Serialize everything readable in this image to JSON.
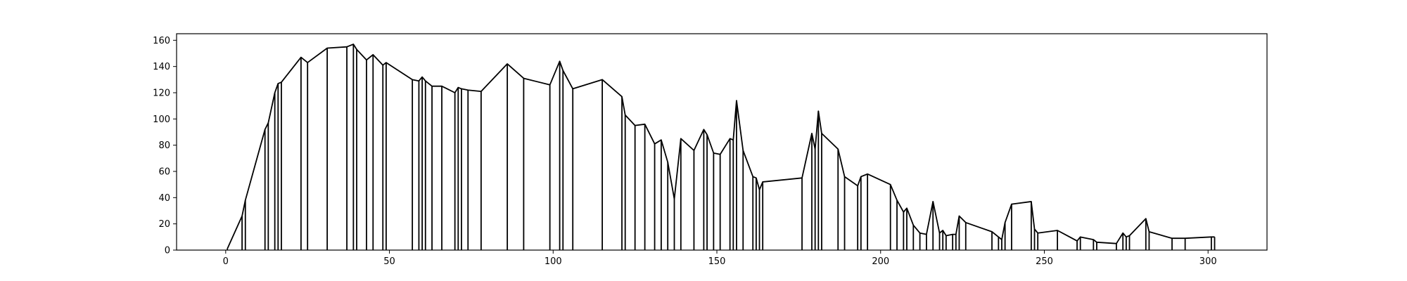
{
  "chart_data": {
    "type": "line",
    "title": "",
    "xlabel": "",
    "ylabel": "",
    "xlim": [
      -15,
      318
    ],
    "ylim": [
      0,
      165
    ],
    "grid": false,
    "legend": "none",
    "x_ticks": [
      0,
      50,
      100,
      150,
      200,
      250,
      300
    ],
    "y_ticks": [
      0,
      20,
      40,
      60,
      80,
      100,
      120,
      140,
      160
    ],
    "x_tick_labels": [
      "0",
      "50",
      "100",
      "150",
      "200",
      "250",
      "300"
    ],
    "y_tick_labels": [
      "0",
      "20",
      "40",
      "60",
      "80",
      "100",
      "120",
      "140",
      "160"
    ],
    "line_color": "#000000",
    "drop_lines": true,
    "series": [
      {
        "x": [
          0.5,
          5,
          6,
          12,
          13,
          15,
          16,
          17,
          23,
          25,
          31,
          37,
          39,
          40,
          43,
          45,
          48,
          49,
          57,
          59,
          60,
          61,
          63,
          66,
          70,
          71,
          72,
          74,
          78,
          86,
          91,
          99,
          102,
          103,
          106,
          115,
          121,
          122,
          125,
          128,
          131,
          133,
          135,
          137,
          139,
          143,
          146,
          147,
          149,
          151,
          154,
          155,
          156,
          158,
          161,
          162,
          163,
          164,
          176,
          179,
          180,
          181,
          182,
          187,
          189,
          193,
          194,
          196,
          203,
          205,
          207,
          208,
          210,
          212,
          214,
          216,
          218,
          219,
          220,
          222,
          223,
          224,
          226,
          234,
          236,
          237,
          238,
          240,
          246,
          247,
          248,
          254,
          260,
          261,
          265,
          266,
          272,
          274,
          275,
          276,
          281,
          282,
          289,
          293,
          301,
          302
        ],
        "y": [
          1,
          26,
          38,
          92,
          97,
          120,
          127,
          128,
          147,
          143,
          154,
          155,
          157,
          153,
          145,
          149,
          141,
          143,
          130,
          129,
          132,
          129,
          125,
          125,
          120,
          124,
          123,
          122,
          121,
          142,
          131,
          126,
          144,
          137,
          123,
          130,
          117,
          103,
          95,
          96,
          81,
          84,
          67,
          39,
          85,
          76,
          92,
          88,
          74,
          73,
          85,
          84,
          114,
          76,
          56,
          55,
          46,
          52,
          55,
          89,
          77,
          106,
          89,
          77,
          56,
          49,
          56,
          58,
          50,
          38,
          29,
          32,
          19,
          13,
          12,
          37,
          13,
          15,
          11,
          12,
          12,
          26,
          21,
          14,
          10,
          8,
          21,
          35,
          37,
          16,
          13,
          15,
          7,
          10,
          8,
          6,
          5,
          13,
          10,
          11,
          24,
          14,
          9,
          9,
          10,
          10
        ]
      }
    ]
  }
}
